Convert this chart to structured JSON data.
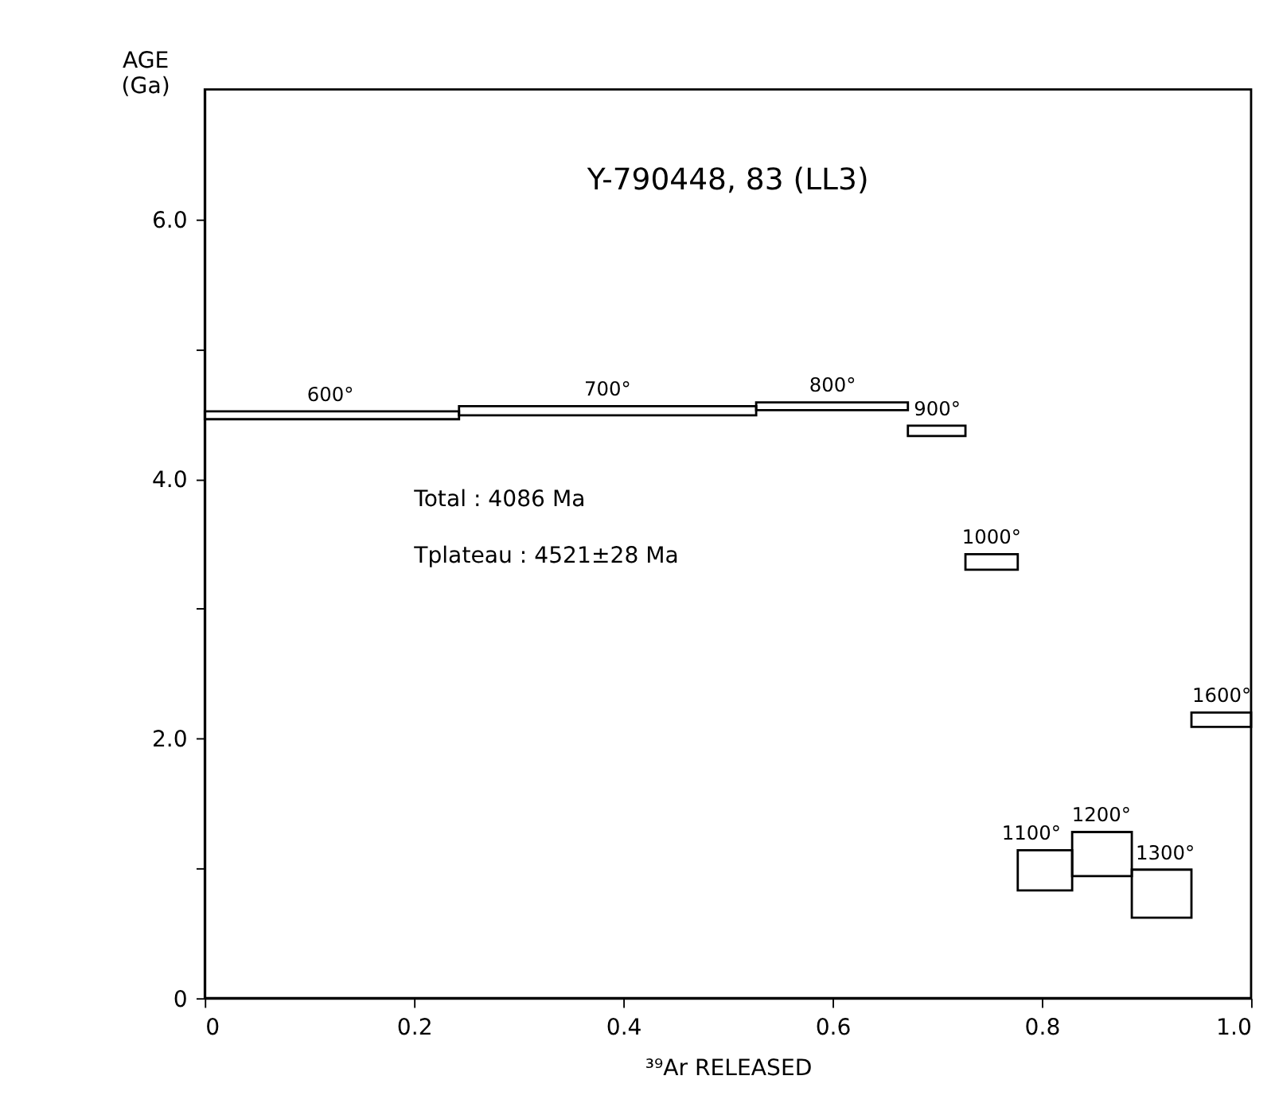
{
  "chart_data": {
    "type": "histogram",
    "title": "Y-790448, 83 (LL3)",
    "xlabel": "³⁹Ar RELEASED",
    "ylabel": "AGE (Ga)",
    "bins": [
      0,
      0.243,
      0.527,
      0.672,
      0.727,
      0.777,
      0.829,
      0.886,
      0.943,
      1.0
    ],
    "base": [
      4.46,
      4.49,
      4.53,
      4.33,
      3.3,
      0.83,
      0.94,
      0.62,
      2.09
    ],
    "values": [
      0.06,
      0.07,
      0.06,
      0.08,
      0.12,
      0.31,
      0.34,
      0.37,
      0.11
    ],
    "color": "#000000",
    "xlim": [
      0,
      1
    ],
    "ylim": [
      0,
      7
    ],
    "xticks": [
      {
        "value": 0,
        "label": "0"
      },
      0.2,
      0.4,
      0.6,
      0.8,
      {
        "value": 1,
        "label": "1.0"
      }
    ],
    "yticks": [
      {
        "value": 0,
        "label": "0"
      },
      {
        "value": 1,
        "label": null
      },
      {
        "value": 2,
        "label": "2.0"
      },
      {
        "value": 3,
        "label": null
      },
      {
        "value": 4,
        "label": "4.0"
      },
      {
        "value": 5,
        "label": null
      },
      {
        "value": 6,
        "label": "6.0"
      }
    ],
    "grid": false,
    "annotations": [
      {
        "text": "600°",
        "x": 0.12,
        "y": 4.52
      },
      {
        "text": "700°",
        "x": 0.385,
        "y": 4.56
      },
      {
        "text": "800°",
        "x": 0.6,
        "y": 4.59
      },
      {
        "text": "900°",
        "x": 0.7,
        "y": 4.41
      },
      {
        "text": "1000°",
        "x": 0.752,
        "y": 3.42
      },
      {
        "text": "1100°",
        "x": 0.79,
        "y": 1.14
      },
      {
        "text": "1200°",
        "x": 0.857,
        "y": 1.28
      },
      {
        "text": "1300°",
        "x": 0.918,
        "y": 0.99
      },
      {
        "text": "1600°",
        "x": 0.972,
        "y": 2.2
      },
      "Total : 4086 Ma",
      "Tplateau : 4521±28 Ma"
    ]
  }
}
